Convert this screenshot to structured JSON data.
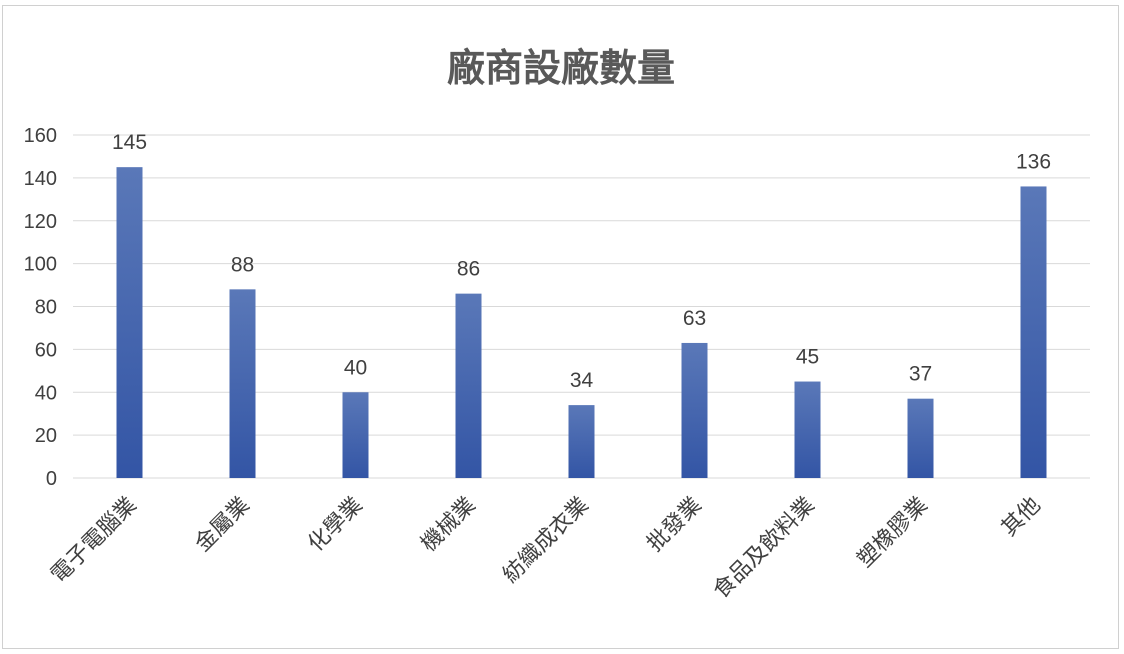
{
  "chart_data": {
    "type": "bar",
    "title": "廠商設廠數量",
    "xlabel": "",
    "ylabel": "",
    "categories": [
      "電子電腦業",
      "金屬業",
      "化學業",
      "機械業",
      "紡織成衣業",
      "批發業",
      "食品及飲料業",
      "塑橡膠業",
      "其他"
    ],
    "values": [
      145,
      88,
      40,
      86,
      34,
      63,
      45,
      37,
      136
    ],
    "ylim": [
      0,
      160
    ],
    "yticks": [
      0,
      20,
      40,
      60,
      80,
      100,
      120,
      140,
      160
    ],
    "grid": true,
    "data_labels": true,
    "bar_color": "#3355a5",
    "bar_color_top": "#5a78b8"
  }
}
